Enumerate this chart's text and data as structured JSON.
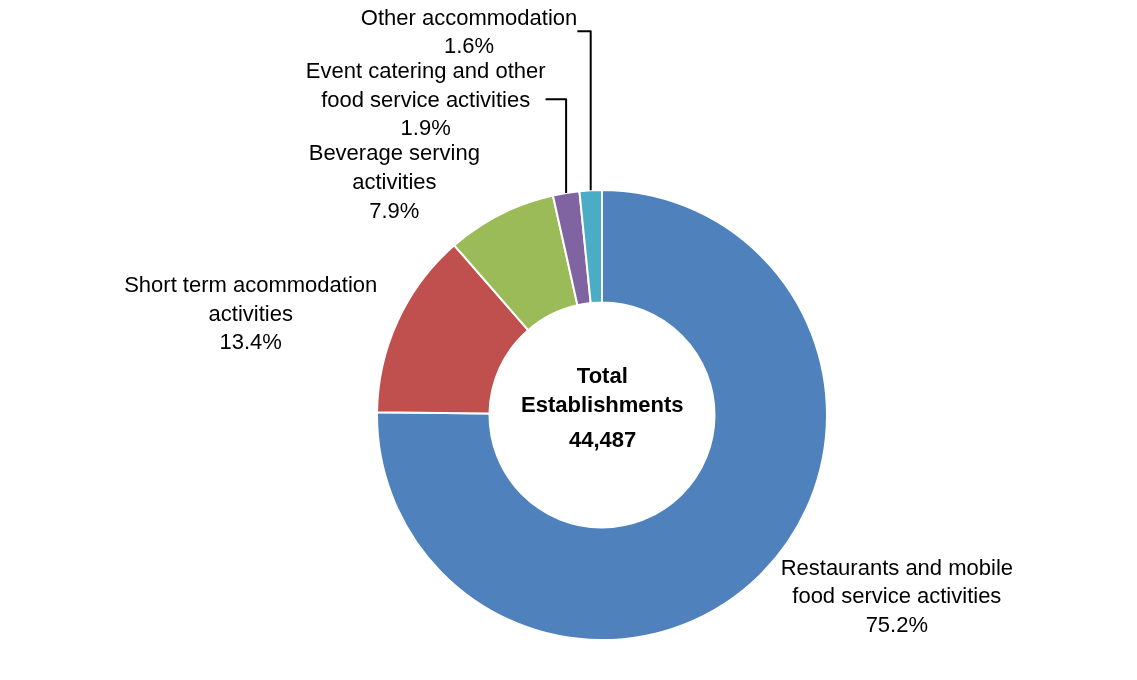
{
  "chart_data": {
    "type": "donut",
    "categories": [
      "Restaurants and mobile food service activities",
      "Short term acommodation activities",
      "Beverage serving activities",
      "Event catering and other food service activities",
      "Other accommodation"
    ],
    "values": [
      75.2,
      13.4,
      7.9,
      1.9,
      1.6
    ],
    "value_labels": [
      "75.2%",
      "13.4%",
      "7.9%",
      "1.9%",
      "1.6%"
    ],
    "colors": [
      "#4f81bd",
      "#c0504d",
      "#9bbb59",
      "#8064a2",
      "#4bacc6"
    ],
    "annotations": [
      "Total Establishments",
      "44,487"
    ],
    "legend": false
  }
}
